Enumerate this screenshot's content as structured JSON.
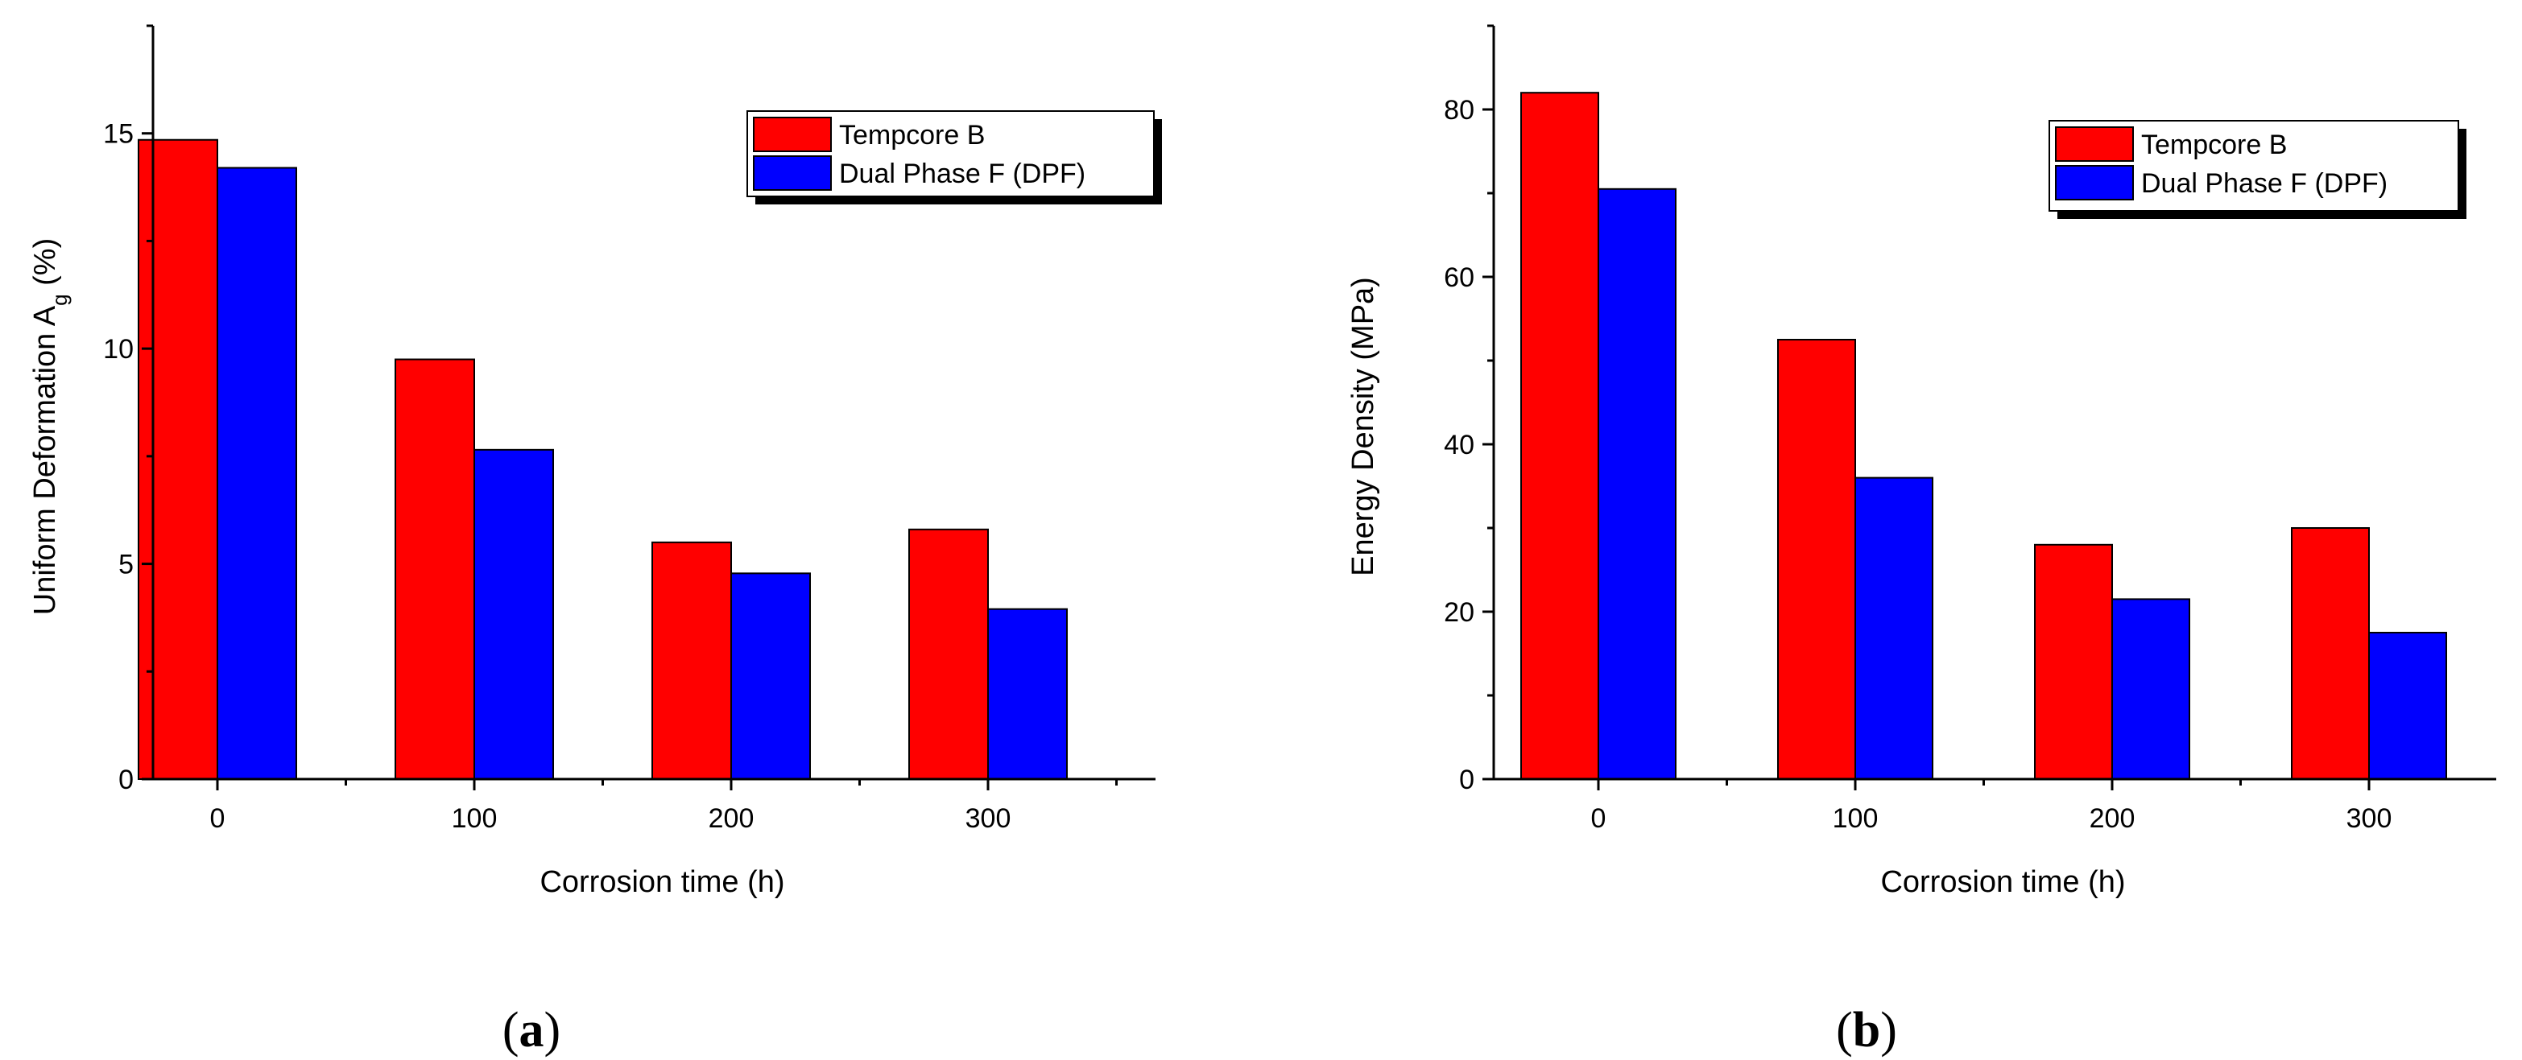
{
  "chart_data": [
    {
      "type": "bar",
      "panel": "a",
      "categories": [
        "0",
        "100",
        "200",
        "300"
      ],
      "series": [
        {
          "name": "Tempcore B",
          "color": "#ff0000",
          "values": [
            14.85,
            9.75,
            5.5,
            5.8
          ]
        },
        {
          "name": "Dual Phase F (DPF)",
          "color": "#0000ff",
          "values": [
            14.2,
            7.65,
            4.78,
            3.95
          ]
        }
      ],
      "xlabel": "Corrosion time (h)",
      "ylabel_main": "Uniform Deformation A",
      "ylabel_sub": "g",
      "ylabel_suffix": " (%)",
      "ylim": [
        0,
        17.5
      ],
      "yticks": [
        0,
        5,
        10,
        15
      ],
      "ytick_labels": [
        "0",
        "5",
        "10",
        "15"
      ],
      "legend": "top-right"
    },
    {
      "type": "bar",
      "panel": "b",
      "categories": [
        "0",
        "100",
        "200",
        "300"
      ],
      "series": [
        {
          "name": "Tempcore B",
          "color": "#ff0000",
          "values": [
            82,
            52.5,
            28,
            30
          ]
        },
        {
          "name": "Dual Phase F (DPF)",
          "color": "#0000ff",
          "values": [
            70.5,
            36,
            21.5,
            17.5
          ]
        }
      ],
      "xlabel": "Corrosion time (h)",
      "ylabel_main": "Energy Density (MPa)",
      "ylabel_sub": "",
      "ylabel_suffix": "",
      "ylim": [
        0,
        90
      ],
      "yticks": [
        0,
        20,
        40,
        60,
        80
      ],
      "ytick_labels": [
        "0",
        "20",
        "40",
        "60",
        "80"
      ],
      "legend": "top-right"
    }
  ],
  "panel_labels": {
    "a_open": "(",
    "a_letter": "a",
    "a_close": ")",
    "b_open": "(",
    "b_letter": "b",
    "b_close": ")"
  }
}
